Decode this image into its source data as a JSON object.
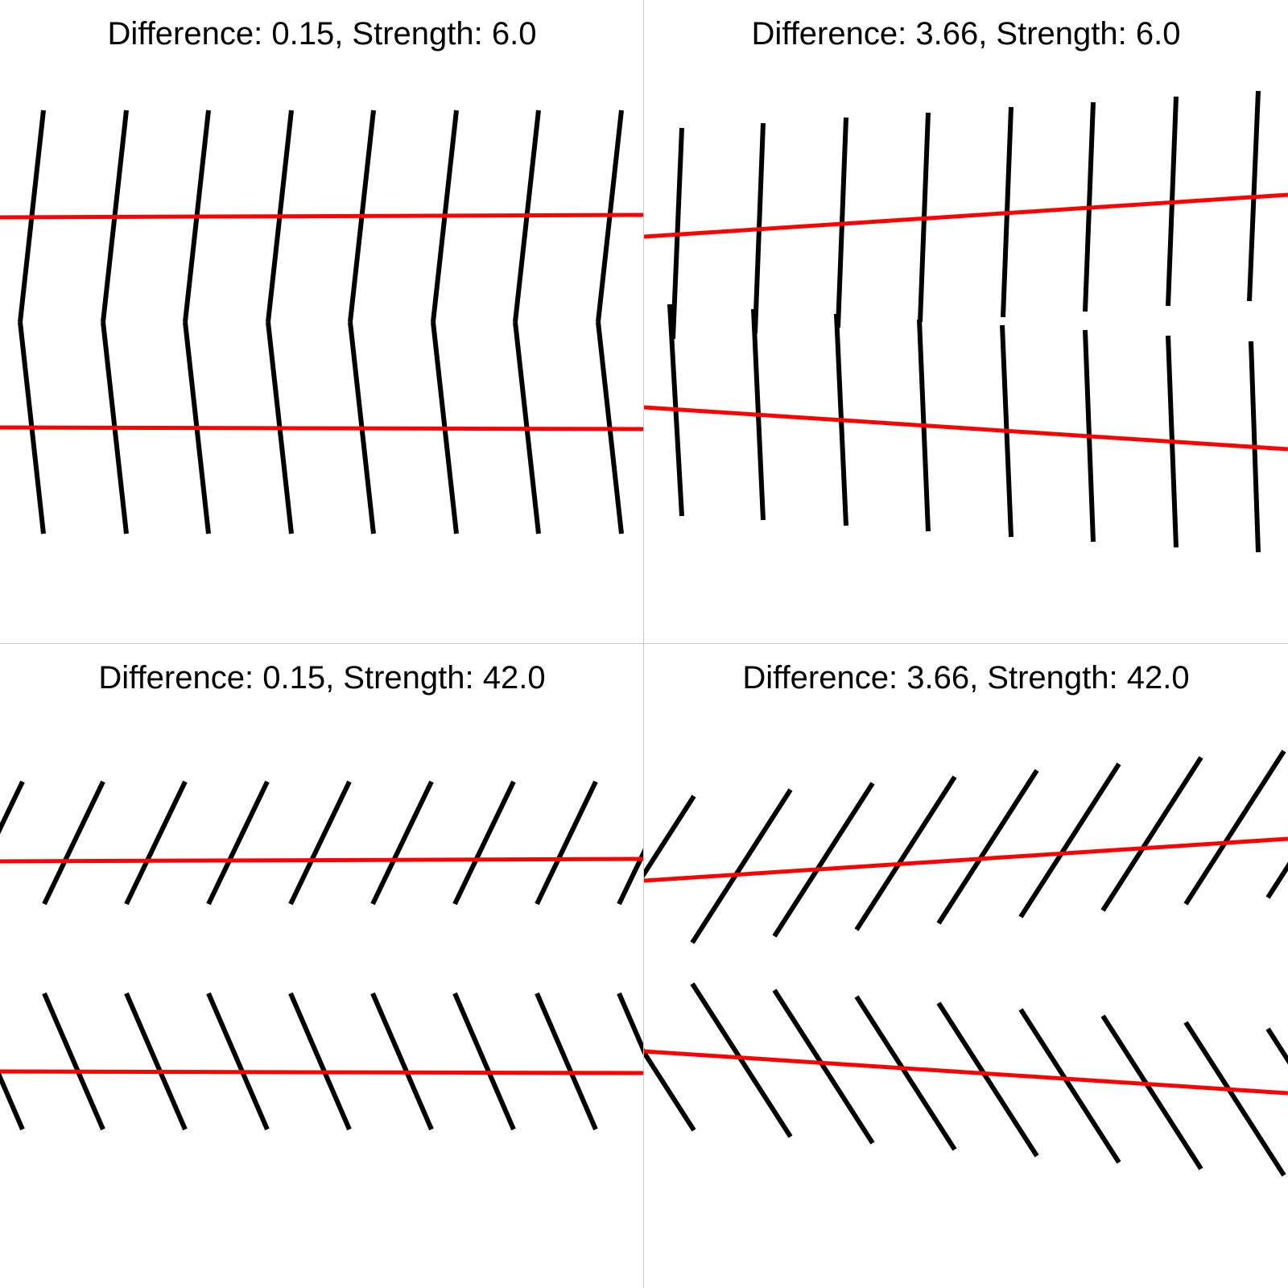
{
  "colors": {
    "inducer": "#000000",
    "test_line": "#ff0000",
    "divider": "#c8c8c8",
    "background": "#ffffff"
  },
  "panels": [
    {
      "title": "Difference: 0.15, Strength: 6.0",
      "difference": 0.15,
      "strength": 6.0
    },
    {
      "title": "Difference: 3.66, Strength: 6.0",
      "difference": 3.66,
      "strength": 6.0
    },
    {
      "title": "Difference: 0.15, Strength: 42.0",
      "difference": 0.15,
      "strength": 42.0
    },
    {
      "title": "Difference: 3.66, Strength: 42.0",
      "difference": 3.66,
      "strength": 42.0
    }
  ]
}
